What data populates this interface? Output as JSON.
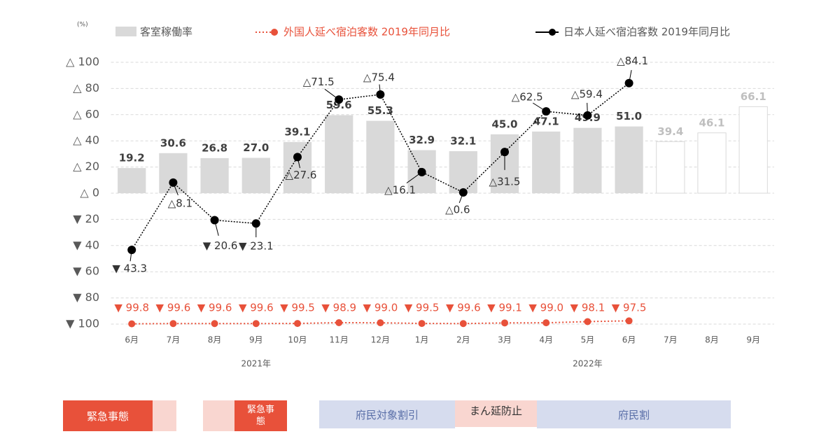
{
  "chart_data": {
    "type": "bar",
    "unit_label": "(%)",
    "categories": [
      "6月",
      "7月",
      "8月",
      "9月",
      "10月",
      "11月",
      "12月",
      "1月",
      "2月",
      "3月",
      "4月",
      "5月",
      "6月",
      "7月",
      "8月",
      "9月"
    ],
    "years": [
      "2021年",
      "2022年"
    ],
    "ylim": [
      -100,
      100
    ],
    "yticks": [
      {
        "value": 100,
        "label": "△ 100"
      },
      {
        "value": 80,
        "label": "△ 80"
      },
      {
        "value": 60,
        "label": "△ 60"
      },
      {
        "value": 40,
        "label": "△ 40"
      },
      {
        "value": 20,
        "label": "△ 20"
      },
      {
        "value": 0,
        "label": "△ 0"
      },
      {
        "value": -20,
        "label": "▼ 20"
      },
      {
        "value": -40,
        "label": "▼ 40"
      },
      {
        "value": -60,
        "label": "▼ 60"
      },
      {
        "value": -80,
        "label": "▼ 80"
      },
      {
        "value": -100,
        "label": "▼ 100"
      }
    ],
    "grid": true,
    "series": [
      {
        "name": "客室稼働率",
        "type": "bar",
        "color": "#d9d9d9",
        "colors": [
          "#d9d9d9",
          "#d9d9d9",
          "#d9d9d9",
          "#d9d9d9",
          "#d9d9d9",
          "#d9d9d9",
          "#d9d9d9",
          "#d9d9d9",
          "#d9d9d9",
          "#d9d9d9",
          "#d9d9d9",
          "#d9d9d9",
          "#d9d9d9",
          "#ffffff",
          "#ffffff",
          "#ffffff"
        ],
        "label_colors": [
          "#404040",
          "#404040",
          "#404040",
          "#404040",
          "#404040",
          "#404040",
          "#404040",
          "#404040",
          "#404040",
          "#404040",
          "#404040",
          "#404040",
          "#404040",
          "#bfbfbf",
          "#bfbfbf",
          "#bfbfbf"
        ],
        "values": [
          19.2,
          30.6,
          26.8,
          27.0,
          39.1,
          59.6,
          55.3,
          32.9,
          32.1,
          45.0,
          47.1,
          49.9,
          51.0,
          39.4,
          46.1,
          66.1
        ],
        "value_labels": [
          "19.2",
          "30.6",
          "26.8",
          "27.0",
          "39.1",
          "59.6",
          "55.3",
          "32.9",
          "32.1",
          "45.0",
          "47.1",
          "49.9",
          "51.0",
          "39.4",
          "46.1",
          "66.1"
        ]
      },
      {
        "name": "外国人延べ宿泊客数 2019年同月比",
        "type": "line",
        "color": "#e8513a",
        "values": [
          -99.8,
          -99.6,
          -99.6,
          -99.6,
          -99.5,
          -98.9,
          -99.0,
          -99.5,
          -99.6,
          -99.1,
          -99.0,
          -98.1,
          -97.5,
          null,
          null,
          null
        ],
        "value_labels": [
          "▼ 99.8",
          "▼ 99.6",
          "▼ 99.6",
          "▼ 99.6",
          "▼ 99.5",
          "▼ 98.9",
          "▼ 99.0",
          "▼ 99.5",
          "▼ 99.6",
          "▼ 99.1",
          "▼ 99.0",
          "▼ 98.1",
          "▼ 97.5",
          null,
          null,
          null
        ]
      },
      {
        "name": "日本人延べ宿泊客数 2019年同月比",
        "type": "line",
        "color": "#000000",
        "values": [
          -43.3,
          8.1,
          -20.6,
          -23.1,
          27.6,
          71.5,
          75.4,
          16.1,
          0.6,
          31.5,
          62.5,
          59.4,
          84.1,
          null,
          null,
          null
        ],
        "value_labels": [
          "▼ 43.3",
          "△8.1",
          "▼ 20.6",
          "▼ 23.1",
          "△27.6",
          "△71.5",
          "△75.4",
          "△16.1",
          "△0.6",
          "△31.5",
          "△62.5",
          "△59.4",
          "△84.1",
          null,
          null,
          null
        ]
      }
    ],
    "periods": [
      "緊急事態",
      "緊急事態",
      "府民対象割引",
      "まん延防止",
      "府民割"
    ]
  }
}
